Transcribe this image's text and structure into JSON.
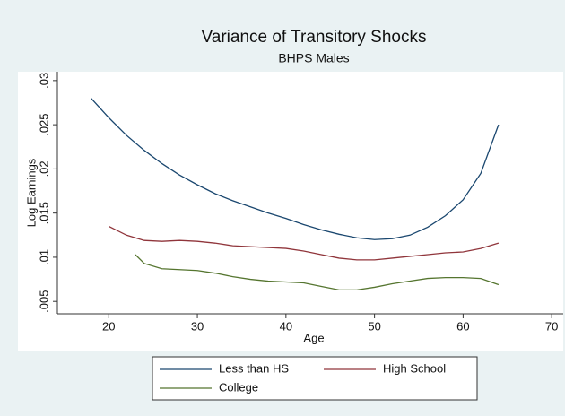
{
  "chart_data": {
    "type": "line",
    "title": "Variance of Transitory Shocks",
    "subtitle": "BHPS Males",
    "x_label": "Age",
    "y_label": "Log Earnings",
    "xlim": [
      14.2,
      71.3
    ],
    "xticks": [
      20,
      30,
      40,
      50,
      60,
      70
    ],
    "ylim": [
      0.0036,
      0.031
    ],
    "yticks": [
      {
        "value": 0.005,
        "label": ".005"
      },
      {
        "value": 0.01,
        "label": ".01"
      },
      {
        "value": 0.015,
        "label": ".015"
      },
      {
        "value": 0.02,
        "label": ".02"
      },
      {
        "value": 0.025,
        "label": ".025"
      },
      {
        "value": 0.03,
        "label": ".03"
      }
    ],
    "legend": "bottom",
    "series": [
      {
        "name": "Less than HS",
        "color": "#1a476f",
        "x": [
          18,
          20,
          22,
          24,
          26,
          28,
          30,
          32,
          34,
          36,
          38,
          40,
          42,
          44,
          46,
          48,
          50,
          52,
          54,
          56,
          58,
          60,
          62,
          64
        ],
        "values": [
          0.028,
          0.0258,
          0.0238,
          0.0221,
          0.0206,
          0.0193,
          0.0182,
          0.0172,
          0.0164,
          0.0157,
          0.015,
          0.0144,
          0.0137,
          0.0131,
          0.0126,
          0.0122,
          0.012,
          0.0121,
          0.0125,
          0.0134,
          0.0147,
          0.0165,
          0.0195,
          0.025
        ]
      },
      {
        "name": "High School",
        "color": "#90353b",
        "x": [
          20,
          22,
          24,
          26,
          28,
          30,
          32,
          34,
          36,
          38,
          40,
          42,
          44,
          46,
          48,
          50,
          52,
          54,
          56,
          58,
          60,
          62,
          64
        ],
        "values": [
          0.0135,
          0.0125,
          0.0119,
          0.0118,
          0.0119,
          0.0118,
          0.0116,
          0.0113,
          0.0112,
          0.0111,
          0.011,
          0.0107,
          0.0103,
          0.0099,
          0.0097,
          0.0097,
          0.0099,
          0.0101,
          0.0103,
          0.0105,
          0.0106,
          0.011,
          0.0116
        ]
      },
      {
        "name": "College",
        "color": "#55752f",
        "x": [
          23,
          24,
          26,
          28,
          30,
          32,
          34,
          36,
          38,
          40,
          42,
          44,
          46,
          48,
          50,
          52,
          54,
          56,
          58,
          60,
          62,
          64
        ],
        "values": [
          0.0103,
          0.0093,
          0.0087,
          0.0086,
          0.0085,
          0.0082,
          0.0078,
          0.0075,
          0.0073,
          0.0072,
          0.0071,
          0.0067,
          0.0063,
          0.0063,
          0.0066,
          0.007,
          0.0073,
          0.0076,
          0.0077,
          0.0077,
          0.0076,
          0.0069
        ]
      }
    ]
  }
}
